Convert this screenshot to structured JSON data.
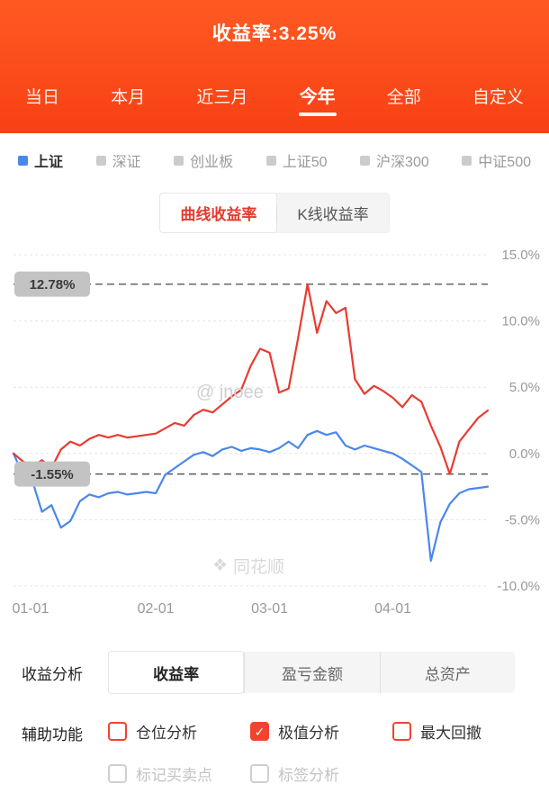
{
  "header": {
    "title": "收益率:3.25%",
    "tabs": [
      {
        "label": "当日",
        "active": false
      },
      {
        "label": "本月",
        "active": false
      },
      {
        "label": "近三月",
        "active": false
      },
      {
        "label": "今年",
        "active": true
      },
      {
        "label": "全部",
        "active": false
      },
      {
        "label": "自定义",
        "active": false
      }
    ]
  },
  "index_selector": {
    "items": [
      {
        "label": "上证",
        "active": true,
        "color": "#4b87ec"
      },
      {
        "label": "深证",
        "active": false
      },
      {
        "label": "创业板",
        "active": false
      },
      {
        "label": "上证50",
        "active": false
      },
      {
        "label": "沪深300",
        "active": false
      },
      {
        "label": "中证500",
        "active": false
      }
    ]
  },
  "view_toggle": {
    "left": "曲线收益率",
    "right": "K线收益率",
    "selected": "曲线收益率"
  },
  "chart_data": {
    "type": "line",
    "ylim": [
      -10,
      15
    ],
    "yticks": [
      15,
      10,
      5,
      0,
      -5,
      -10
    ],
    "ytick_labels": [
      "15.0%",
      "10.0%",
      "5.0%",
      "0.0%",
      "-5.0%",
      "-10.0%"
    ],
    "x_labels": [
      "01-01",
      "02-01",
      "03-01",
      "04-01"
    ],
    "x_label_indices": [
      0,
      15,
      27,
      40
    ],
    "max_marker": {
      "value": 12.78,
      "label": "12.78%"
    },
    "min_marker": {
      "value": -1.55,
      "label": "-1.55%"
    },
    "grid": true,
    "legend_position": "none",
    "series": [
      {
        "name": "上证",
        "color": "#4b87ec",
        "values": [
          0.0,
          -1.6,
          -2.1,
          -4.4,
          -3.9,
          -5.6,
          -5.1,
          -3.6,
          -3.1,
          -3.3,
          -3.0,
          -2.9,
          -3.1,
          -3.0,
          -2.9,
          -3.0,
          -1.6,
          -1.1,
          -0.6,
          -0.1,
          0.1,
          -0.2,
          0.3,
          0.5,
          0.2,
          0.4,
          0.3,
          0.1,
          0.4,
          0.9,
          0.4,
          1.4,
          1.7,
          1.4,
          1.6,
          0.6,
          0.3,
          0.6,
          0.4,
          0.2,
          0.0,
          -0.4,
          -0.9,
          -1.4,
          -8.1,
          -5.2,
          -3.8,
          -3.0,
          -2.7,
          -2.6,
          -2.5
        ]
      },
      {
        "name": "收益率",
        "color": "#e83b32",
        "values": [
          0.0,
          -0.6,
          -1.0,
          -0.5,
          -1.1,
          0.3,
          0.9,
          0.6,
          1.1,
          1.4,
          1.2,
          1.4,
          1.2,
          1.3,
          1.4,
          1.5,
          1.9,
          2.3,
          2.1,
          2.9,
          3.3,
          3.1,
          3.7,
          4.3,
          4.8,
          6.6,
          7.9,
          7.6,
          4.6,
          4.9,
          8.7,
          12.78,
          9.1,
          11.5,
          10.6,
          11.0,
          5.6,
          4.5,
          5.1,
          4.7,
          4.2,
          3.5,
          4.4,
          3.9,
          2.1,
          0.5,
          -1.55,
          0.9,
          1.8,
          2.7,
          3.25
        ]
      }
    ],
    "latest_value": "3.25%"
  },
  "watermarks": {
    "center": "@ jnoee",
    "brand": "同花顺"
  },
  "analysis": {
    "label": "收益分析",
    "tabs": [
      "收益率",
      "盈亏金额",
      "总资产"
    ],
    "selected": "收益率"
  },
  "aux": {
    "label": "辅助功能",
    "options": [
      {
        "label": "仓位分析",
        "checked": false,
        "style": "red"
      },
      {
        "label": "极值分析",
        "checked": true,
        "style": "red"
      },
      {
        "label": "最大回撤",
        "checked": false,
        "style": "red"
      },
      {
        "label": "标记买卖点",
        "checked": false,
        "style": "gray"
      },
      {
        "label": "标签分析",
        "checked": false,
        "style": "gray"
      }
    ]
  },
  "icons": {
    "check": "✓",
    "brand_logo": "❖"
  },
  "colors": {
    "header_orange": "#fa4517",
    "red_line": "#e83b32",
    "blue_line": "#4b87ec",
    "accent_red": "#e6392d"
  }
}
